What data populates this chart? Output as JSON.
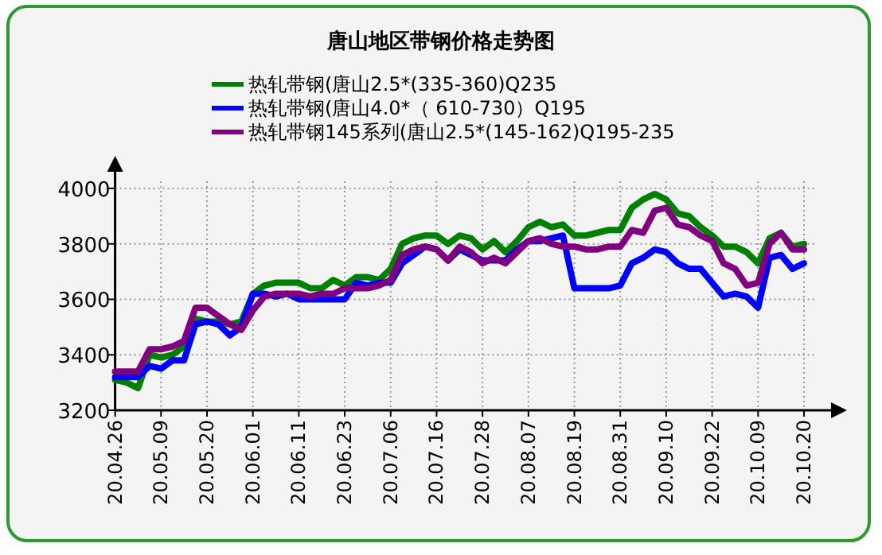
{
  "chart_data": {
    "type": "line",
    "title": "唐山地区带钢价格走势图",
    "categories": [
      "20.04.26",
      null,
      null,
      null,
      "20.05.09",
      null,
      null,
      null,
      "20.05.20",
      null,
      null,
      null,
      "20.06.01",
      null,
      null,
      null,
      "20.06.11",
      null,
      null,
      null,
      "20.06.23",
      null,
      null,
      null,
      "20.07.06",
      null,
      null,
      null,
      "20.07.16",
      null,
      null,
      null,
      "20.07.28",
      null,
      null,
      null,
      "20.08.07",
      null,
      null,
      null,
      "20.08.19",
      null,
      null,
      null,
      "20.08.31",
      null,
      null,
      null,
      "20.09.10",
      null,
      null,
      null,
      "20.09.22",
      null,
      null,
      null,
      "20.10.09",
      null,
      null,
      null,
      "20.10.20"
    ],
    "series": [
      {
        "name": "热轧带钢(唐山2.5*(335-360)Q235",
        "color": "#008000",
        "values": [
          3310,
          3300,
          3280,
          3400,
          3390,
          3400,
          3430,
          3530,
          3520,
          3520,
          3510,
          3520,
          3620,
          3650,
          3660,
          3660,
          3660,
          3640,
          3640,
          3670,
          3650,
          3680,
          3680,
          3670,
          3710,
          3800,
          3820,
          3830,
          3830,
          3800,
          3830,
          3820,
          3780,
          3810,
          3770,
          3810,
          3860,
          3880,
          3860,
          3870,
          3830,
          3830,
          3840,
          3850,
          3850,
          3930,
          3960,
          3980,
          3960,
          3910,
          3900,
          3860,
          3830,
          3790,
          3790,
          3770,
          3730,
          3820,
          3840,
          3790,
          3800
        ]
      },
      {
        "name": "热轧带钢(唐山4.0*（ 610-730）Q195",
        "color": "#0000ff",
        "values": [
          3320,
          3320,
          3320,
          3360,
          3350,
          3380,
          3380,
          3510,
          3520,
          3510,
          3470,
          3500,
          3620,
          3620,
          3610,
          3620,
          3600,
          3600,
          3600,
          3600,
          3600,
          3660,
          3650,
          3660,
          3660,
          3730,
          3760,
          3790,
          3780,
          3740,
          3780,
          3760,
          3740,
          3740,
          3740,
          3780,
          3810,
          3810,
          3820,
          3830,
          3640,
          3640,
          3640,
          3640,
          3650,
          3730,
          3750,
          3780,
          3770,
          3730,
          3710,
          3710,
          3660,
          3610,
          3620,
          3610,
          3570,
          3750,
          3760,
          3710,
          3730
        ]
      },
      {
        "name": "热轧带钢145系列(唐山2.5*(145-162)Q195-235",
        "color": "#800080",
        "values": [
          3340,
          3340,
          3340,
          3420,
          3420,
          3430,
          3450,
          3570,
          3570,
          3540,
          3510,
          3490,
          3560,
          3610,
          3620,
          3620,
          3620,
          3610,
          3620,
          3620,
          3640,
          3640,
          3640,
          3650,
          3670,
          3760,
          3780,
          3790,
          3780,
          3740,
          3790,
          3770,
          3730,
          3750,
          3730,
          3770,
          3810,
          3820,
          3800,
          3790,
          3790,
          3780,
          3780,
          3790,
          3790,
          3850,
          3840,
          3920,
          3930,
          3870,
          3860,
          3830,
          3810,
          3730,
          3710,
          3650,
          3660,
          3800,
          3840,
          3780,
          3780
        ]
      }
    ],
    "ylim": [
      3200,
      4060
    ],
    "yticks": [
      3200,
      3400,
      3600,
      3800,
      4000
    ],
    "grid": true,
    "legend": "top",
    "line_style": "solid",
    "marker": "none"
  }
}
